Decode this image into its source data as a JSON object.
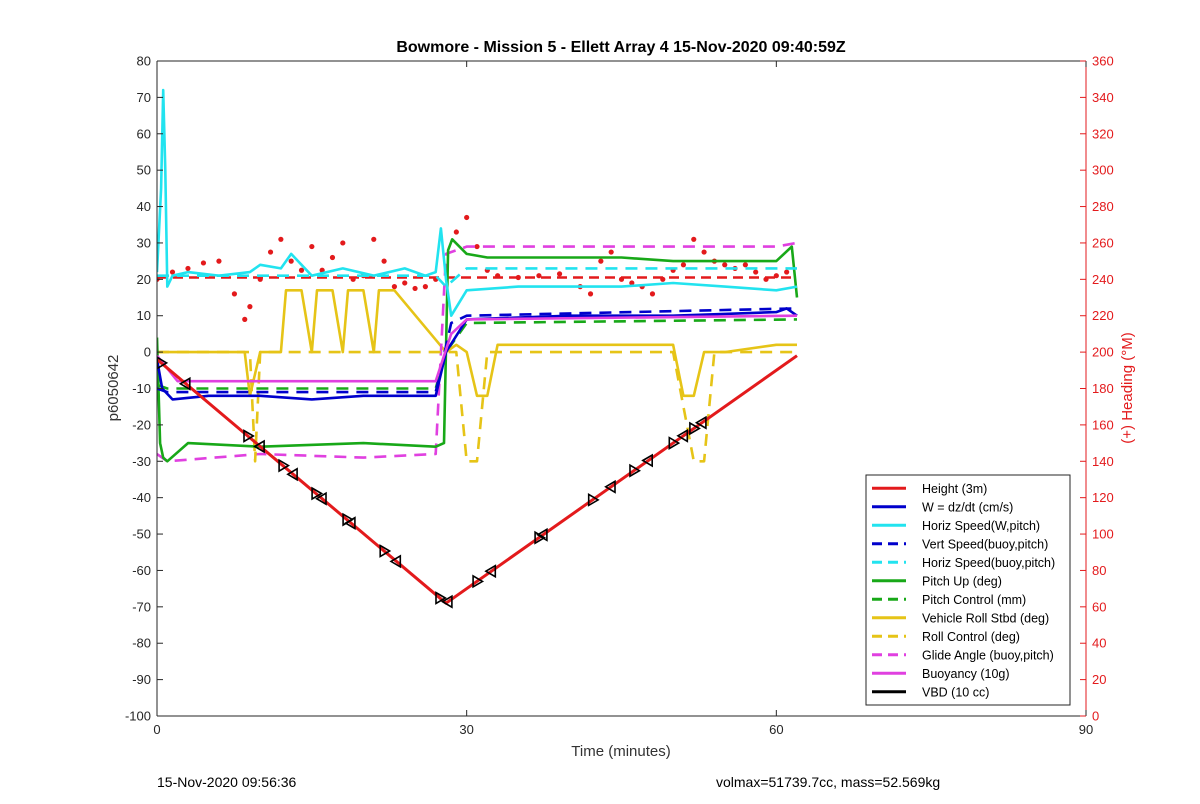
{
  "chart_data": {
    "type": "line",
    "title": "Bowmore - Mission 5 - Ellett Array 4 15-Nov-2020 09:40:59Z",
    "xlabel": "Time (minutes)",
    "ylabel": "p6050642",
    "y2label": "(+) Heading (°M)",
    "xlim": [
      0,
      90
    ],
    "ylim": [
      -100,
      80
    ],
    "y2lim": [
      0,
      360
    ],
    "xticks": [
      0,
      30,
      60,
      90
    ],
    "yticks": [
      -100,
      -90,
      -80,
      -70,
      -60,
      -50,
      -40,
      -30,
      -20,
      -10,
      0,
      10,
      20,
      30,
      40,
      50,
      60,
      70,
      80
    ],
    "y2ticks": [
      0,
      20,
      40,
      60,
      80,
      100,
      120,
      140,
      160,
      180,
      200,
      220,
      240,
      260,
      280,
      300,
      320,
      340,
      360
    ],
    "grid": false,
    "legend_position": "bottom-right",
    "colors": {
      "height": "#e31a1c",
      "w": "#0000cc",
      "horiz": "#22e3ef",
      "pitch": "#18a818",
      "roll": "#e6c417",
      "glide": "#e040e0",
      "buoy": "#e040e0",
      "vbd": "#000000",
      "heading_axis": "#e31a1c"
    },
    "series": [
      {
        "name": "Height (3m)",
        "color": "#e31a1c",
        "style": "solid",
        "x": [
          0,
          28,
          62
        ],
        "y": [
          -2,
          -69,
          -1
        ]
      },
      {
        "name": "W = dz/dt (cm/s)",
        "color": "#0000cc",
        "style": "solid",
        "x": [
          0,
          0.5,
          1.5,
          5,
          10,
          15,
          20,
          24,
          27,
          28,
          30,
          35,
          40,
          45,
          50,
          55,
          60,
          61,
          62
        ],
        "y": [
          -2,
          -10,
          -13,
          -12,
          -12,
          -13,
          -12,
          -12,
          -12,
          0,
          9,
          9.5,
          10,
          10,
          10,
          10.5,
          11,
          12,
          10
        ]
      },
      {
        "name": "Horiz Speed(W,pitch)",
        "color": "#22e3ef",
        "style": "solid",
        "x": [
          0,
          0.4,
          0.6,
          0.8,
          1,
          1.5,
          3,
          6,
          9,
          10,
          12,
          13,
          15,
          18,
          21,
          24,
          26,
          27,
          27.5,
          28,
          28.5,
          30,
          35,
          40,
          45,
          50,
          55,
          60,
          62
        ],
        "y": [
          22,
          45,
          72,
          50,
          18,
          21,
          22,
          21,
          22,
          24,
          23,
          27,
          21,
          23,
          21,
          23,
          21,
          22,
          34,
          20,
          10,
          17,
          18,
          18,
          18,
          19,
          18,
          17,
          18
        ]
      },
      {
        "name": "Vert Speed(buoy,pitch)",
        "color": "#0000cc",
        "style": "dashed",
        "x": [
          0,
          1,
          27,
          28.5,
          30,
          62
        ],
        "y": [
          -10,
          -11,
          -11,
          8,
          10,
          12
        ]
      },
      {
        "name": "Horiz Speed(buoy,pitch)",
        "color": "#22e3ef",
        "style": "dashed",
        "x": [
          0,
          1,
          27,
          28,
          30,
          62
        ],
        "y": [
          21,
          21,
          21,
          18,
          23,
          23
        ]
      },
      {
        "name": "Pitch Up (deg)",
        "color": "#18a818",
        "style": "solid",
        "x": [
          0,
          0.3,
          0.6,
          1,
          3,
          10,
          20,
          27,
          27.8,
          28.2,
          28.6,
          30,
          32,
          40,
          45,
          50,
          55,
          60,
          61.5,
          62
        ],
        "y": [
          4,
          -25,
          -29,
          -30,
          -25,
          -26,
          -25,
          -26,
          -25,
          28,
          31,
          27,
          26,
          26,
          26,
          25,
          25,
          25,
          29,
          15
        ]
      },
      {
        "name": "Pitch Control (mm)",
        "color": "#18a818",
        "style": "dashed",
        "x": [
          0,
          1,
          27,
          28,
          30,
          62
        ],
        "y": [
          -9,
          -10,
          -10,
          0,
          8,
          9
        ]
      },
      {
        "name": "Vehicle Roll Stbd (deg)",
        "color": "#e6c417",
        "style": "solid",
        "x": [
          0,
          8.5,
          9,
          10,
          12,
          12.5,
          14,
          15,
          15.5,
          17,
          18,
          18.5,
          20,
          21,
          21.5,
          23,
          28,
          29,
          30,
          31,
          32,
          33,
          35,
          38,
          40,
          42,
          45,
          48,
          50,
          51,
          52,
          53,
          55,
          60,
          62
        ],
        "y": [
          0,
          0,
          -12,
          0,
          0,
          17,
          17,
          0,
          17,
          17,
          0,
          17,
          17,
          0,
          17,
          17,
          0,
          2,
          0,
          -12,
          -12,
          2,
          2,
          2,
          2,
          2,
          2,
          2,
          2,
          -12,
          -12,
          0,
          0,
          2,
          2
        ]
      },
      {
        "name": "Roll Control (deg)",
        "color": "#e6c417",
        "style": "dashed",
        "x": [
          0,
          9,
          9.5,
          10,
          27,
          29,
          30,
          31,
          32,
          33,
          40,
          45,
          50,
          52,
          53,
          54,
          55,
          62
        ],
        "y": [
          0,
          0,
          -30,
          0,
          0,
          0,
          -30,
          -30,
          0,
          0,
          0,
          0,
          0,
          -30,
          -30,
          0,
          0,
          0
        ]
      },
      {
        "name": "Glide Angle (buoy,pitch)",
        "color": "#e040e0",
        "style": "dashed",
        "x": [
          0,
          1,
          10,
          20,
          27,
          28,
          30,
          40,
          50,
          60,
          62
        ],
        "y": [
          -28,
          -30,
          -28,
          -29,
          -28,
          27,
          29,
          29,
          29,
          29,
          30
        ]
      },
      {
        "name": "Buoyancy (10g)",
        "color": "#e040e0",
        "style": "solid",
        "x": [
          0,
          2,
          27,
          28.5,
          30,
          62
        ],
        "y": [
          -1,
          -8,
          -8,
          5,
          9,
          10
        ]
      },
      {
        "name": "VBD (10 cc)",
        "color": "#000000",
        "style": "solid",
        "x": [
          0,
          1,
          27,
          28.5,
          30,
          33,
          60,
          62
        ],
        "y": [
          -2,
          -7,
          -7,
          6,
          9,
          9.5,
          10,
          10
        ]
      }
    ],
    "heading": {
      "axis": "right",
      "color": "#e31a1c",
      "reference": 241,
      "x": [
        0,
        1.5,
        3,
        4.5,
        6,
        7.5,
        8.5,
        9,
        10,
        11,
        12,
        13,
        14,
        15,
        16,
        17,
        18,
        19,
        20,
        21,
        22,
        23,
        24,
        25,
        26,
        27,
        29,
        30,
        31,
        32,
        33,
        35,
        37,
        39,
        41,
        42,
        43,
        44,
        45,
        46,
        47,
        48,
        49,
        50,
        51,
        52,
        53,
        54,
        55,
        56,
        57,
        58,
        59,
        60,
        61
      ],
      "y": [
        240,
        244,
        246,
        249,
        250,
        232,
        218,
        225,
        240,
        255,
        262,
        250,
        245,
        258,
        245,
        252,
        260,
        240,
        242,
        262,
        250,
        236,
        238,
        235,
        236,
        240,
        266,
        274,
        258,
        245,
        242,
        241,
        242,
        243,
        236,
        232,
        250,
        255,
        240,
        238,
        236,
        232,
        240,
        245,
        248,
        262,
        255,
        250,
        248,
        246,
        248,
        244,
        240,
        242,
        244
      ]
    },
    "markers": {
      "symbol": "triangle",
      "x": [
        0.4,
        2.8,
        8.8,
        10,
        12.2,
        13.2,
        15.4,
        16,
        18.4,
        18.8,
        22,
        23.2,
        27.4,
        28.2,
        31,
        32.4,
        37,
        37.4,
        42.2,
        44,
        46.2,
        47.6,
        50,
        51,
        52,
        52.8
      ]
    }
  },
  "footer": {
    "left": "15-Nov-2020 09:56:36",
    "right": "volmax=51739.7cc, mass=52.569kg"
  }
}
